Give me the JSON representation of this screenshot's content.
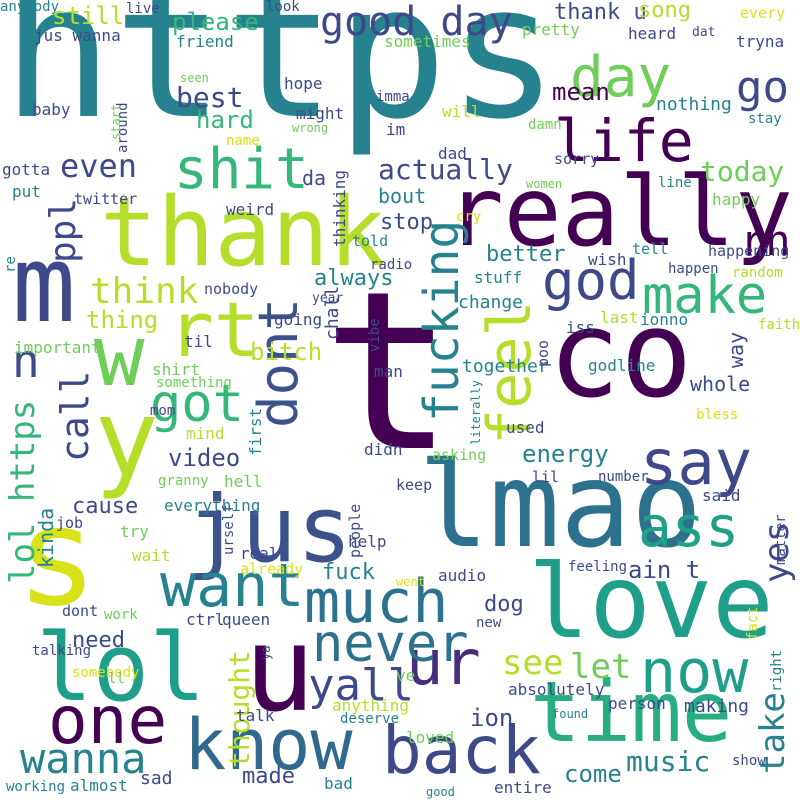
{
  "palette": [
    "#440154",
    "#482878",
    "#3e4989",
    "#31688e",
    "#26828e",
    "#1f9e89",
    "#35b779",
    "#6ece58",
    "#b5de2b",
    "#fde725"
  ],
  "words": [
    {
      "text": "https",
      "color": "#26828e"
    },
    {
      "text": "t",
      "color": "#440154"
    },
    {
      "text": "co",
      "color": "#440154"
    },
    {
      "text": "lmao",
      "color": "#2c728e"
    },
    {
      "text": "thank",
      "color": "#b5de2b"
    },
    {
      "text": "really",
      "color": "#440154"
    },
    {
      "text": "jus",
      "color": "#3b528b"
    },
    {
      "text": "love",
      "color": "#1f9e89"
    },
    {
      "text": "u",
      "color": "#440154"
    },
    {
      "text": "lol",
      "color": "#1f9e89"
    },
    {
      "text": "time",
      "color": "#26ad81"
    },
    {
      "text": "m",
      "color": "#3e4989"
    },
    {
      "text": "s",
      "color": "#d8e219"
    },
    {
      "text": "y",
      "color": "#b5de2b"
    },
    {
      "text": "w",
      "color": "#6ece58"
    },
    {
      "text": "know",
      "color": "#31688e"
    },
    {
      "text": "back",
      "color": "#3e4989"
    },
    {
      "text": "one",
      "color": "#440154"
    },
    {
      "text": "now",
      "color": "#1f9e89"
    },
    {
      "text": "say",
      "color": "#3e4989"
    },
    {
      "text": "much",
      "color": "#2c728e"
    },
    {
      "text": "want",
      "color": "#26828e"
    },
    {
      "text": "ur",
      "color": "#472d7b"
    },
    {
      "text": "ass",
      "color": "#1fa187"
    },
    {
      "text": "never",
      "color": "#2c728e"
    },
    {
      "text": "rt",
      "color": "#b5de2b"
    },
    {
      "text": "life",
      "color": "#440154"
    },
    {
      "text": "day",
      "color": "#6ece58"
    },
    {
      "text": "good day",
      "color": "#3e4989"
    },
    {
      "text": "shit",
      "color": "#35b779"
    },
    {
      "text": "god",
      "color": "#3e4989"
    },
    {
      "text": "make",
      "color": "#35b779"
    },
    {
      "text": "got",
      "color": "#35b779"
    },
    {
      "text": "dont",
      "color": "#3b528b"
    },
    {
      "text": "feel",
      "color": "#b5de2b"
    },
    {
      "text": "fucking",
      "color": "#26828e"
    },
    {
      "text": "wanna",
      "color": "#26828e"
    },
    {
      "text": "yall",
      "color": "#3e4989"
    },
    {
      "text": "go",
      "color": "#3e4989"
    },
    {
      "text": "rn",
      "color": "#440154"
    },
    {
      "text": "n",
      "color": "#3e4989"
    },
    {
      "text": "ppl",
      "color": "#3e4989"
    },
    {
      "text": "think",
      "color": "#b5de2b"
    },
    {
      "text": "call",
      "color": "#3e4989"
    },
    {
      "text": "lol https",
      "color": "#35b779"
    },
    {
      "text": "see",
      "color": "#b5de2b"
    },
    {
      "text": "let",
      "color": "#6ece58"
    },
    {
      "text": "take",
      "color": "#26828e"
    },
    {
      "text": "yes",
      "color": "#3e4989"
    },
    {
      "text": "even",
      "color": "#3e4989"
    },
    {
      "text": "actually",
      "color": "#3e4989"
    },
    {
      "text": "best",
      "color": "#3e4989"
    },
    {
      "text": "hard",
      "color": "#35b779"
    },
    {
      "text": "mean",
      "color": "#440154"
    },
    {
      "text": "today",
      "color": "#6ece58"
    },
    {
      "text": "thing",
      "color": "#b5de2b"
    },
    {
      "text": "bitch",
      "color": "#b5de2b"
    },
    {
      "text": "always",
      "color": "#26828e"
    },
    {
      "text": "energy",
      "color": "#26828e"
    },
    {
      "text": "video",
      "color": "#3e4989"
    },
    {
      "text": "cause",
      "color": "#3e4989"
    },
    {
      "text": "need",
      "color": "#3e4989"
    },
    {
      "text": "thought",
      "color": "#b5de2b"
    },
    {
      "text": "music",
      "color": "#26828e"
    },
    {
      "text": "come",
      "color": "#26828e"
    },
    {
      "text": "ain t",
      "color": "#3e4989"
    },
    {
      "text": "fuck",
      "color": "#26828e"
    },
    {
      "text": "dog",
      "color": "#3e4989"
    },
    {
      "text": "ion",
      "color": "#3e4989"
    },
    {
      "text": "made",
      "color": "#3e4989"
    },
    {
      "text": "still",
      "color": "#b5de2b"
    },
    {
      "text": "please",
      "color": "#35b779"
    },
    {
      "text": "thank u",
      "color": "#3e4989"
    },
    {
      "text": "song",
      "color": "#b5de2b"
    },
    {
      "text": "jus wanna",
      "color": "#3e4989"
    },
    {
      "text": "friend",
      "color": "#26828e"
    },
    {
      "text": "sometimes",
      "color": "#6ece58"
    },
    {
      "text": "pretty",
      "color": "#6ece58"
    },
    {
      "text": "heard",
      "color": "#3e4989"
    },
    {
      "text": "dat",
      "color": "#3e4989"
    },
    {
      "text": "tryna",
      "color": "#3e4989"
    },
    {
      "text": "every",
      "color": "#d8e219"
    },
    {
      "text": "look",
      "color": "#3e4989"
    },
    {
      "text": "live",
      "color": "#3e4989"
    },
    {
      "text": "hope",
      "color": "#3e4989"
    },
    {
      "text": "imma",
      "color": "#3e4989"
    },
    {
      "text": "might",
      "color": "#3e4989"
    },
    {
      "text": "will",
      "color": "#b5de2b"
    },
    {
      "text": "nothing",
      "color": "#26828e"
    },
    {
      "text": "stay",
      "color": "#26828e"
    },
    {
      "text": "baby",
      "color": "#3e4989"
    },
    {
      "text": "seen",
      "color": "#6ece58"
    },
    {
      "text": "around",
      "color": "#3e4989"
    },
    {
      "text": "start",
      "color": "#6ece58"
    },
    {
      "text": "wrong",
      "color": "#6ece58"
    },
    {
      "text": "im",
      "color": "#3e4989"
    },
    {
      "text": "name",
      "color": "#d8e219"
    },
    {
      "text": "damn",
      "color": "#6ece58"
    },
    {
      "text": "dad",
      "color": "#3e4989"
    },
    {
      "text": "sorry",
      "color": "#3e4989"
    },
    {
      "text": "gotta",
      "color": "#3e4989"
    },
    {
      "text": "put",
      "color": "#26828e"
    },
    {
      "text": "twitter",
      "color": "#3e4989"
    },
    {
      "text": "da",
      "color": "#3e4989"
    },
    {
      "text": "thinking",
      "color": "#3e4989"
    },
    {
      "text": "women",
      "color": "#6ece58"
    },
    {
      "text": "line",
      "color": "#26828e"
    },
    {
      "text": "bout",
      "color": "#26828e"
    },
    {
      "text": "happy",
      "color": "#6ece58"
    },
    {
      "text": "weird",
      "color": "#3e4989"
    },
    {
      "text": "cry",
      "color": "#d8e219"
    },
    {
      "text": "stop",
      "color": "#3e4989"
    },
    {
      "text": "told",
      "color": "#26828e"
    },
    {
      "text": "better",
      "color": "#26828e"
    },
    {
      "text": "tell",
      "color": "#26828e"
    },
    {
      "text": "happening",
      "color": "#3e4989"
    },
    {
      "text": "radio",
      "color": "#3e4989"
    },
    {
      "text": "wish",
      "color": "#3e4989"
    },
    {
      "text": "happen",
      "color": "#3e4989"
    },
    {
      "text": "random",
      "color": "#b5de2b"
    },
    {
      "text": "stuff",
      "color": "#26828e"
    },
    {
      "text": "year",
      "color": "#3e4989"
    },
    {
      "text": "change",
      "color": "#26828e"
    },
    {
      "text": "nobody",
      "color": "#3e4989"
    },
    {
      "text": "going",
      "color": "#3e4989"
    },
    {
      "text": "til",
      "color": "#3e4989"
    },
    {
      "text": "vibe",
      "color": "#3e4989"
    },
    {
      "text": "iss",
      "color": "#3e4989"
    },
    {
      "text": "last",
      "color": "#b5de2b"
    },
    {
      "text": "ionno",
      "color": "#26828e"
    },
    {
      "text": "faith",
      "color": "#b5de2b"
    },
    {
      "text": "re",
      "color": "#26828e"
    },
    {
      "text": "important",
      "color": "#6ece58"
    },
    {
      "text": "shirt",
      "color": "#6ece58"
    },
    {
      "text": "something",
      "color": "#6ece58"
    },
    {
      "text": "together",
      "color": "#26828e"
    },
    {
      "text": "man",
      "color": "#3e4989"
    },
    {
      "text": "poo",
      "color": "#3e4989"
    },
    {
      "text": "godline",
      "color": "#26828e"
    },
    {
      "text": "whole",
      "color": "#3e4989"
    },
    {
      "text": "way",
      "color": "#3e4989"
    },
    {
      "text": "literally",
      "color": "#26828e"
    },
    {
      "text": "bless",
      "color": "#d8e219"
    },
    {
      "text": "mind",
      "color": "#b5de2b"
    },
    {
      "text": "first",
      "color": "#26828e"
    },
    {
      "text": "used",
      "color": "#3e4989"
    },
    {
      "text": "mom",
      "color": "#3e4989"
    },
    {
      "text": "didn",
      "color": "#3e4989"
    },
    {
      "text": "asking",
      "color": "#6ece58"
    },
    {
      "text": "number",
      "color": "#3e4989"
    },
    {
      "text": "granny",
      "color": "#6ece58"
    },
    {
      "text": "hell",
      "color": "#6ece58"
    },
    {
      "text": "keep",
      "color": "#3e4989"
    },
    {
      "text": "lil",
      "color": "#3e4989"
    },
    {
      "text": "said",
      "color": "#3e4989"
    },
    {
      "text": "kinda",
      "color": "#26828e"
    },
    {
      "text": "everything",
      "color": "#26828e"
    },
    {
      "text": "job",
      "color": "#3e4989"
    },
    {
      "text": "urself",
      "color": "#3e4989"
    },
    {
      "text": "people",
      "color": "#3e4989"
    },
    {
      "text": "try",
      "color": "#6ece58"
    },
    {
      "text": "matter",
      "color": "#3e4989"
    },
    {
      "text": "wait",
      "color": "#b5de2b"
    },
    {
      "text": "help",
      "color": "#3e4989"
    },
    {
      "text": "real",
      "color": "#3e4989"
    },
    {
      "text": "already",
      "color": "#d8e219"
    },
    {
      "text": "audio",
      "color": "#3e4989"
    },
    {
      "text": "feeling",
      "color": "#3e4989"
    },
    {
      "text": "dont",
      "color": "#3e4989"
    },
    {
      "text": "went",
      "color": "#d8e219"
    },
    {
      "text": "work",
      "color": "#6ece58"
    },
    {
      "text": "ctrl",
      "color": "#3e4989"
    },
    {
      "text": "new",
      "color": "#3e4989"
    },
    {
      "text": "fact",
      "color": "#d8e219"
    },
    {
      "text": "queen",
      "color": "#3e4989"
    },
    {
      "text": "talking",
      "color": "#3e4989"
    },
    {
      "text": "ya",
      "color": "#3e4989"
    },
    {
      "text": "somebody",
      "color": "#d8e219"
    },
    {
      "text": "ll",
      "color": "#6ece58"
    },
    {
      "text": "ve",
      "color": "#6ece58"
    },
    {
      "text": "absolutely",
      "color": "#3e4989"
    },
    {
      "text": "right",
      "color": "#26828e"
    },
    {
      "text": "making",
      "color": "#3e4989"
    },
    {
      "text": "anything",
      "color": "#b5de2b"
    },
    {
      "text": "person",
      "color": "#3e4989"
    },
    {
      "text": "talk",
      "color": "#3e4989"
    },
    {
      "text": "deserve",
      "color": "#26828e"
    },
    {
      "text": "loved",
      "color": "#6ece58"
    },
    {
      "text": "found",
      "color": "#26828e"
    },
    {
      "text": "show",
      "color": "#3e4989"
    },
    {
      "text": "sad",
      "color": "#3e4989"
    },
    {
      "text": "working",
      "color": "#26828e"
    },
    {
      "text": "almost",
      "color": "#26828e"
    },
    {
      "text": "bad",
      "color": "#26828e"
    },
    {
      "text": "good",
      "color": "#26828e"
    },
    {
      "text": "entire",
      "color": "#3e4989"
    },
    {
      "text": "chall",
      "color": "#3e4989"
    },
    {
      "text": "anybody",
      "color": "#26828e"
    }
  ]
}
